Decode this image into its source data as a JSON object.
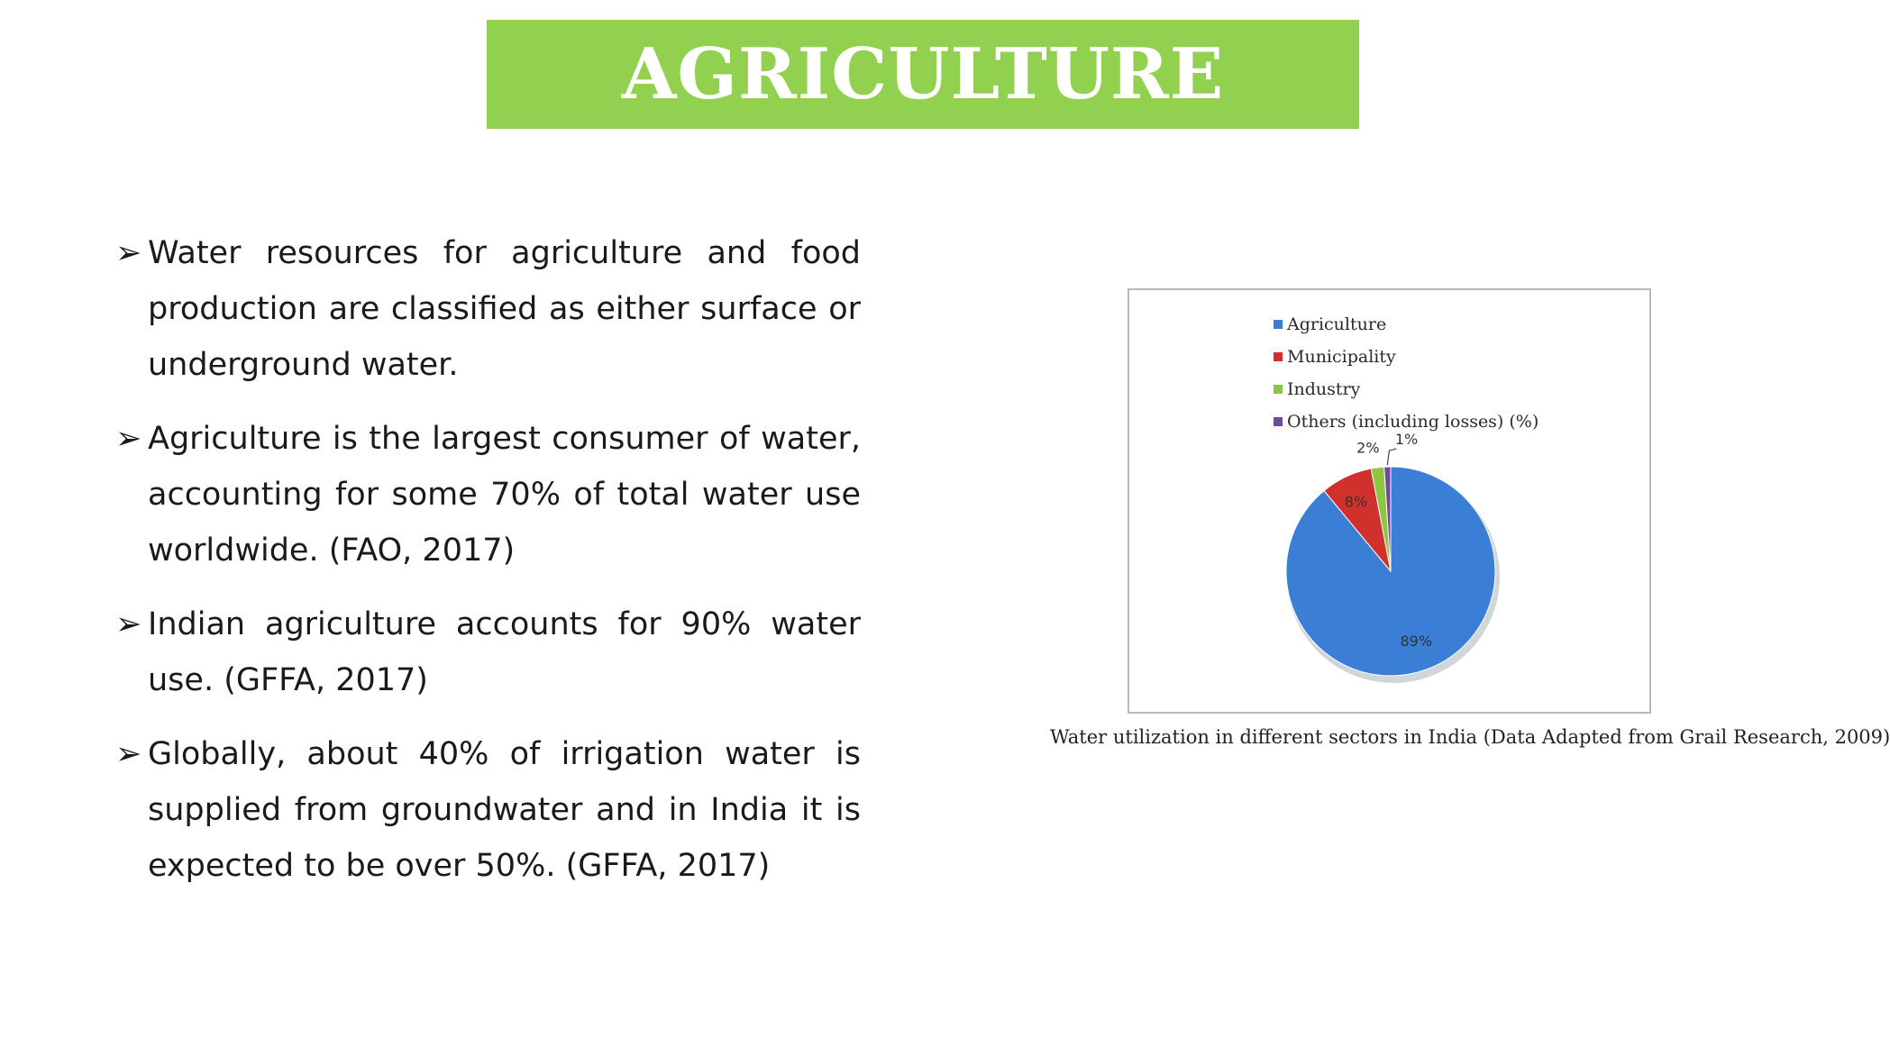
{
  "title": "AGRICULTURE",
  "bullets": [
    {
      "marker": "➢",
      "text": "Water resources for agriculture and food production are classified as either surface or underground water."
    },
    {
      "marker": "➢",
      "text": "Agriculture is the largest consumer of water, accounting for some 70% of total water use worldwide. (FAO, 2017)"
    },
    {
      "marker": "➢",
      "text": "Indian agriculture accounts for 90% water use. (GFFA, 2017)"
    },
    {
      "marker": "➢",
      "text": "Globally, about 40% of irrigation water is supplied from groundwater and in India it is expected to be over 50%. (GFFA, 2017)"
    }
  ],
  "chart_data": {
    "type": "pie",
    "title": "",
    "categories": [
      "Agriculture",
      "Municipality",
      "Industry",
      "Others (including losses) (%)"
    ],
    "values": [
      89,
      8,
      2,
      1
    ],
    "data_labels": [
      "89%",
      "8%",
      "2%",
      "1%"
    ],
    "colors": [
      "#3a7fd5",
      "#d0312d",
      "#8dc63f",
      "#7048a3"
    ],
    "legend_position": "top"
  },
  "caption": "Water utilization in different sectors in India (Data Adapted from Grail Research, 2009)"
}
